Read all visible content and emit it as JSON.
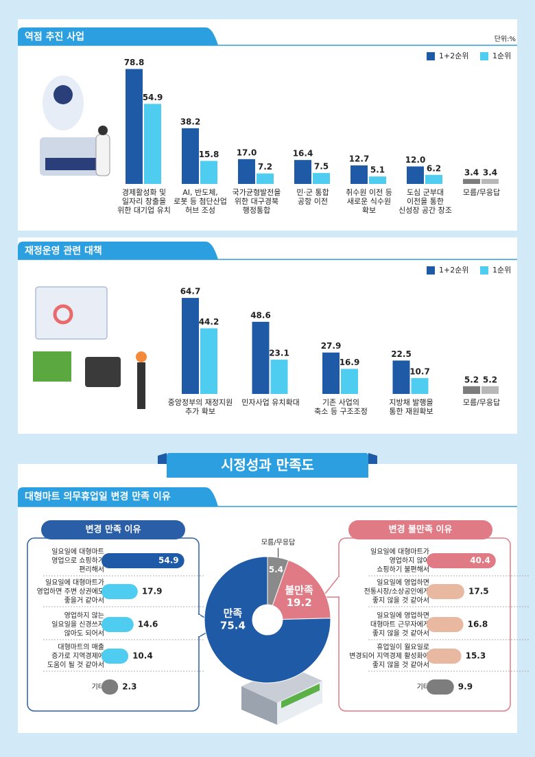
{
  "unit_label": "단위:%",
  "section_title": "시정성과 만족도",
  "chart_data": [
    {
      "type": "bar",
      "title": "역점 추진 사업",
      "categories": [
        "경제활성화 및\n일자리 창출을\n위한 대기업 유치",
        "AI, 반도체,\n로봇 등 첨단산업\n허브 조성",
        "국가균형발전을\n위한 대구경북\n행정통합",
        "민·군 통합\n공항 이전",
        "취수원 이전 등\n새로운 식수원\n확보",
        "도심 군부대\n이전을 통한\n신성장 공간 창조",
        "모름/무응답"
      ],
      "series": [
        {
          "name": "1+2순위",
          "color": "#1f5aa6",
          "colors": [
            "#1f5aa6",
            "#1f5aa6",
            "#1f5aa6",
            "#1f5aa6",
            "#1f5aa6",
            "#1f5aa6",
            "#7d7d7d"
          ],
          "values": [
            78.8,
            38.2,
            17.0,
            16.4,
            12.7,
            12.0,
            3.4
          ],
          "value_labels": [
            "78.8",
            "38.2",
            "17.0",
            "16.4",
            "12.7",
            "12.0",
            "3.4"
          ]
        },
        {
          "name": "1순위",
          "color": "#4fcdf0",
          "colors": [
            "#4fcdf0",
            "#4fcdf0",
            "#4fcdf0",
            "#4fcdf0",
            "#4fcdf0",
            "#4fcdf0",
            "#b8b8b8"
          ],
          "values": [
            54.9,
            15.8,
            7.2,
            7.5,
            5.1,
            6.2,
            3.4
          ],
          "value_labels": [
            "54.9",
            "15.8",
            "7.2",
            "7.5",
            "5.1",
            "6.2",
            "3.4"
          ]
        }
      ],
      "ylim": [
        0,
        80
      ]
    },
    {
      "type": "bar",
      "title": "재정운영 관련 대책",
      "categories": [
        "중앙정부의 재정지원\n추가 확보",
        "민자사업 유치확대",
        "기존 사업의\n축소 등 구조조정",
        "지방채 발행을\n통한 재원확보",
        "모름/무응답"
      ],
      "series": [
        {
          "name": "1+2순위",
          "color": "#1f5aa6",
          "colors": [
            "#1f5aa6",
            "#1f5aa6",
            "#1f5aa6",
            "#1f5aa6",
            "#7d7d7d"
          ],
          "values": [
            64.7,
            48.6,
            27.9,
            22.5,
            5.2
          ]
        },
        {
          "name": "1순위",
          "color": "#4fcdf0",
          "colors": [
            "#4fcdf0",
            "#4fcdf0",
            "#4fcdf0",
            "#4fcdf0",
            "#b8b8b8"
          ],
          "values": [
            44.2,
            23.1,
            16.9,
            10.7,
            5.2
          ]
        }
      ],
      "ylim": [
        0,
        80
      ]
    },
    {
      "type": "pie",
      "title": "대형마트 의무휴업일 변경 만족 이유",
      "categories": [
        "모름/무응답",
        "불만족",
        "만족"
      ],
      "values": [
        5.4,
        19.2,
        75.4
      ],
      "colors": [
        "#8a8a8a",
        "#e07a85",
        "#1f5aa6"
      ]
    },
    {
      "type": "hbar",
      "title": "변경 만족 이유",
      "categories": [
        "일요일에 대형마트\n영업으로 쇼핑하기\n편리해서",
        "일요일에 대형마트가\n영업하면 주변 상권에도\n좋을거 같아서",
        "영업하지 않는\n일요일을 신경쓰지\n않아도 되어서",
        "대형마트의 매출\n증가로 지역경제에\n도움이 될 것 같아서",
        "기타"
      ],
      "values": [
        54.9,
        17.9,
        14.6,
        10.4,
        2.3
      ],
      "colors": [
        "#1f5aa6",
        "#4fcdf0",
        "#4fcdf0",
        "#4fcdf0",
        "#7d7d7d"
      ],
      "xlim": [
        0,
        60
      ]
    },
    {
      "type": "hbar",
      "title": "변경 불만족 이유",
      "categories": [
        "일요일에 대형마트가\n영업하지 않아\n쇼핑하기 불편해서",
        "일요일에 영업하면\n전통시장/소상공인에게\n좋지 않을 것 같아서",
        "일요일에 영업하면\n대형마트 근무자에게\n좋지 않을 것 같아서",
        "휴업일이 월요일로\n변경되어 지역경제 활성화에\n좋지 않을 것 같아서",
        "기타"
      ],
      "values": [
        40.4,
        17.5,
        16.8,
        15.3,
        9.9
      ],
      "colors": [
        "#e07a85",
        "#e8b9a0",
        "#e8b9a0",
        "#e8b9a0",
        "#7d7d7d"
      ],
      "xlim": [
        0,
        45
      ]
    }
  ]
}
